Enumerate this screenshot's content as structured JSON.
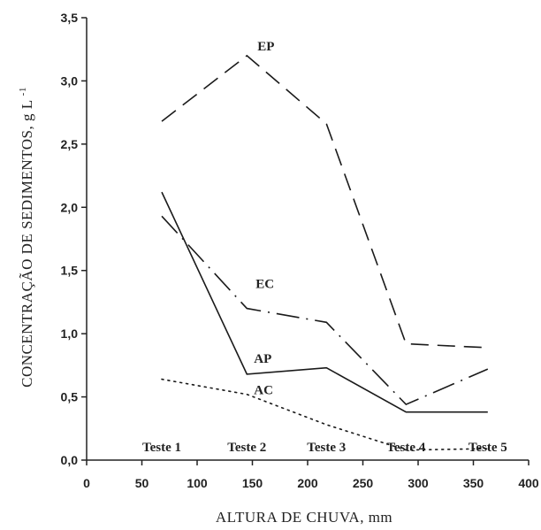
{
  "chart_data": {
    "type": "line",
    "xlabel": "ALTURA DE CHUVA, mm",
    "ylabel": "CONCENTRAÇÃO DE SEDIMENTOS, g L",
    "ylabel_superscript": "-1",
    "xlim": [
      0,
      400
    ],
    "ylim": [
      0,
      3.5
    ],
    "xticks": [
      0,
      50,
      100,
      150,
      200,
      250,
      300,
      350,
      400
    ],
    "xtick_labels": [
      "0",
      "50",
      "100",
      "150",
      "200",
      "250",
      "300",
      "350",
      "400"
    ],
    "yticks": [
      0,
      0.5,
      1.0,
      1.5,
      2.0,
      2.5,
      3.0,
      3.5
    ],
    "ytick_labels": [
      "0,0",
      "0,5",
      "1,0",
      "1,5",
      "2,0",
      "2,5",
      "3,0",
      "3,5"
    ],
    "grid": false,
    "legend": "none",
    "category_labels": [
      {
        "label": "Teste 1",
        "x": 68
      },
      {
        "label": "Teste 2",
        "x": 145
      },
      {
        "label": "Teste 3",
        "x": 217
      },
      {
        "label": "Teste 4",
        "x": 289
      },
      {
        "label": "Teste 5",
        "x": 363
      }
    ],
    "series": [
      {
        "name": "EP",
        "style": "long-dash",
        "x": [
          68,
          145,
          217,
          289,
          363
        ],
        "y": [
          2.68,
          3.2,
          2.66,
          0.92,
          0.89
        ]
      },
      {
        "name": "EC",
        "style": "dash-dot",
        "x": [
          68,
          145,
          217,
          289,
          363
        ],
        "y": [
          1.93,
          1.2,
          1.09,
          0.44,
          0.72
        ]
      },
      {
        "name": "AP",
        "style": "solid",
        "x": [
          68,
          145,
          217,
          289,
          363
        ],
        "y": [
          2.12,
          0.68,
          0.73,
          0.38,
          0.38
        ]
      },
      {
        "name": "AC",
        "style": "dotted",
        "x": [
          68,
          145,
          217,
          289,
          363
        ],
        "y": [
          0.64,
          0.52,
          0.28,
          0.08,
          0.09
        ]
      }
    ],
    "annotations": [
      {
        "text": "EP",
        "series": "EP",
        "x": 145,
        "y": 3.2
      },
      {
        "text": "EC",
        "series": "EC",
        "x": 145,
        "y": 1.2
      },
      {
        "text": "AP",
        "series": "AP",
        "x": 145,
        "y": 0.68
      },
      {
        "text": "AC",
        "series": "AC",
        "x": 145,
        "y": 0.52
      }
    ],
    "colors": {
      "line": "#1a1a1a",
      "axis": "#222222"
    }
  }
}
